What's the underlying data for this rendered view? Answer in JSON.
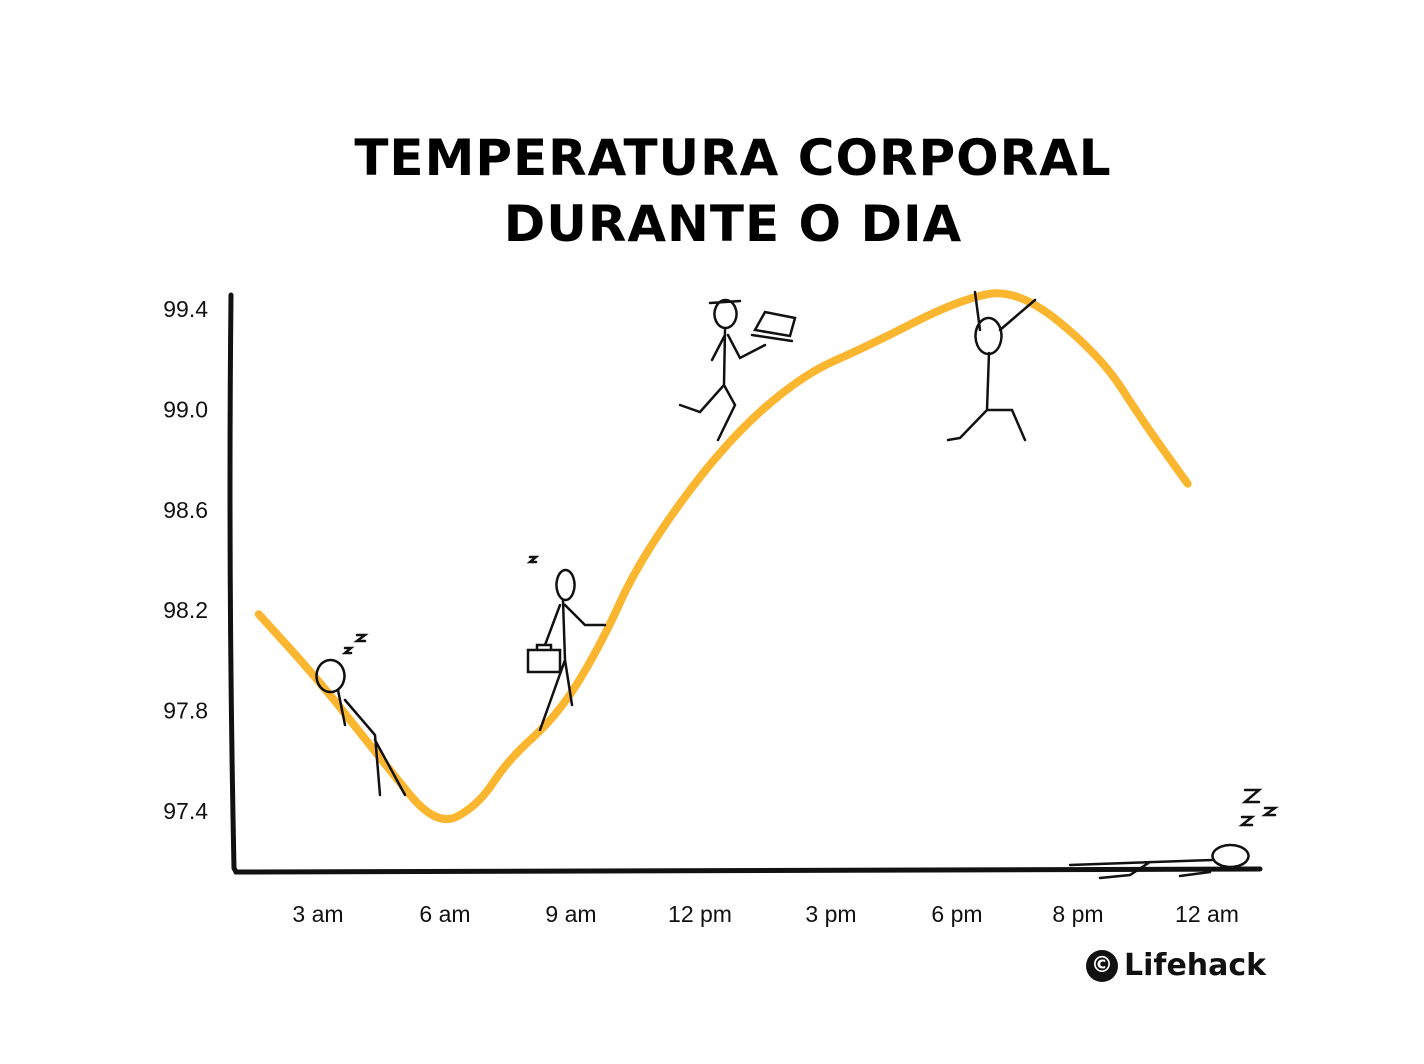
{
  "chart_data": {
    "type": "line",
    "title": "TEMPERATURA CORPORAL DURANTE O DIA",
    "title_lines": [
      "TEMPERATURA CORPORAL",
      "DURANTE O DIA"
    ],
    "xlabel": "",
    "ylabel": "",
    "x_ticks": [
      {
        "hour": 3,
        "label": "3 am"
      },
      {
        "hour": 6,
        "label": "6 am"
      },
      {
        "hour": 9,
        "label": "9 am"
      },
      {
        "hour": 12,
        "label": "12 pm"
      },
      {
        "hour": 15,
        "label": "3 pm"
      },
      {
        "hour": 18,
        "label": "6 pm"
      },
      {
        "hour": 20,
        "label": "8 pm"
      },
      {
        "hour": 24,
        "label": "12 am"
      }
    ],
    "y_ticks": [
      "97.4",
      "97.8",
      "98.2",
      "98.6",
      "99.0",
      "99.4"
    ],
    "ylim": [
      97.2,
      99.5
    ],
    "grid": false,
    "series": [
      {
        "color": "#FBB630",
        "points": [
          {
            "x": 1.6,
            "y": 98.18
          },
          {
            "x": 3.0,
            "y": 97.92
          },
          {
            "x": 4.5,
            "y": 97.6
          },
          {
            "x": 5.8,
            "y": 97.33
          },
          {
            "x": 6.8,
            "y": 97.42
          },
          {
            "x": 7.5,
            "y": 97.6
          },
          {
            "x": 8.7,
            "y": 97.78
          },
          {
            "x": 9.7,
            "y": 98.06
          },
          {
            "x": 10.6,
            "y": 98.4
          },
          {
            "x": 12.5,
            "y": 98.85
          },
          {
            "x": 14.3,
            "y": 99.13
          },
          {
            "x": 15.9,
            "y": 99.25
          },
          {
            "x": 18.0,
            "y": 99.43
          },
          {
            "x": 19.0,
            "y": 99.48
          },
          {
            "x": 20.7,
            "y": 99.21
          },
          {
            "x": 22.0,
            "y": 98.95
          },
          {
            "x": 23.4,
            "y": 98.7
          }
        ]
      }
    ],
    "illustrations": [
      "sleepy-figure-icon",
      "walking-figure-with-briefcase-icon",
      "running-figure-with-laptop-icon",
      "jumping-figure-icon",
      "sleeping-lying-figure-icon"
    ]
  },
  "brand": {
    "name": "Lifehack",
    "mark": "©"
  }
}
